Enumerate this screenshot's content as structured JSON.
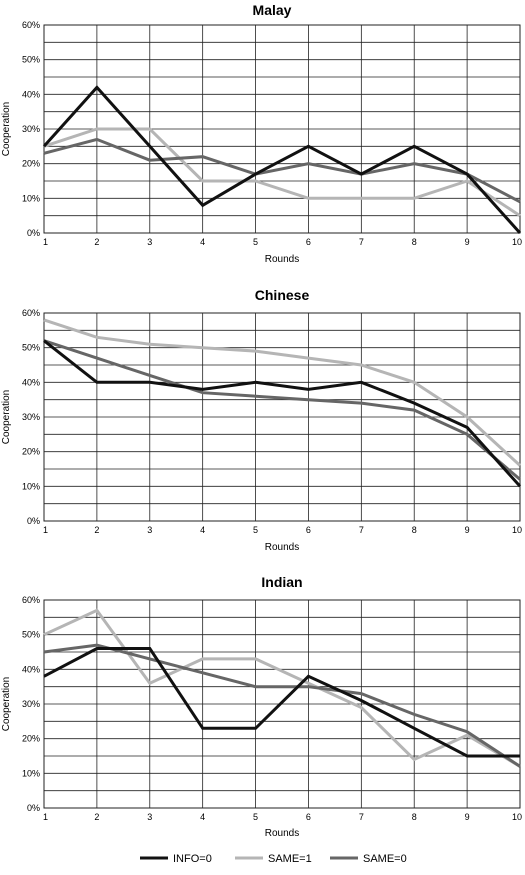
{
  "chart_data": [
    {
      "type": "line",
      "title": "Malay",
      "xlabel": "Rounds",
      "ylabel": "Cooperation",
      "categories": [
        "1",
        "2",
        "3",
        "4",
        "5",
        "6",
        "7",
        "8",
        "9",
        "10"
      ],
      "y_ticks": [
        "0%",
        "10%",
        "20%",
        "30%",
        "40%",
        "50%",
        "60%"
      ],
      "ylim": [
        0,
        60
      ],
      "grid": true,
      "series": [
        {
          "name": "INFO=0",
          "color": "#111111",
          "values": [
            25,
            42,
            25,
            8,
            17,
            25,
            17,
            25,
            17,
            0
          ]
        },
        {
          "name": "SAME=1",
          "color": "#b5b5b5",
          "values": [
            25,
            30,
            30,
            15,
            15,
            10,
            10,
            10,
            15,
            5
          ]
        },
        {
          "name": "SAME=0",
          "color": "#666666",
          "values": [
            23,
            27,
            21,
            22,
            17,
            20,
            17,
            20,
            17,
            9
          ]
        }
      ]
    },
    {
      "type": "line",
      "title": "Chinese",
      "xlabel": "Rounds",
      "ylabel": "Cooperation",
      "categories": [
        "1",
        "2",
        "3",
        "4",
        "5",
        "6",
        "7",
        "8",
        "9",
        "10"
      ],
      "y_ticks": [
        "0%",
        "10%",
        "20%",
        "30%",
        "40%",
        "50%",
        "60%"
      ],
      "ylim": [
        0,
        60
      ],
      "grid": true,
      "series": [
        {
          "name": "INFO=0",
          "color": "#111111",
          "values": [
            52,
            40,
            40,
            38,
            40,
            38,
            40,
            34,
            27,
            10
          ]
        },
        {
          "name": "SAME=1",
          "color": "#b5b5b5",
          "values": [
            58,
            53,
            51,
            50,
            49,
            47,
            45,
            40,
            30,
            16
          ]
        },
        {
          "name": "SAME=0",
          "color": "#666666",
          "values": [
            52,
            47,
            42,
            37,
            36,
            35,
            34,
            32,
            25,
            12
          ]
        }
      ]
    },
    {
      "type": "line",
      "title": "Indian",
      "xlabel": "Rounds",
      "ylabel": "Cooperation",
      "categories": [
        "1",
        "2",
        "3",
        "4",
        "5",
        "6",
        "7",
        "8",
        "9",
        "10"
      ],
      "y_ticks": [
        "0%",
        "10%",
        "20%",
        "30%",
        "40%",
        "50%",
        "60%"
      ],
      "ylim": [
        0,
        60
      ],
      "grid": true,
      "series": [
        {
          "name": "INFO=0",
          "color": "#111111",
          "values": [
            38,
            46,
            46,
            23,
            23,
            38,
            31,
            23,
            15,
            15
          ]
        },
        {
          "name": "SAME=1",
          "color": "#b5b5b5",
          "values": [
            50,
            57,
            36,
            43,
            43,
            36,
            29,
            14,
            21,
            12
          ]
        },
        {
          "name": "SAME=0",
          "color": "#666666",
          "values": [
            45,
            47,
            43,
            39,
            35,
            35,
            33,
            27,
            22,
            12
          ]
        }
      ]
    }
  ],
  "legend": {
    "placement": "bottom-center",
    "entries": [
      {
        "label": "INFO=0",
        "color": "#111111"
      },
      {
        "label": "SAME=1",
        "color": "#b5b5b5"
      },
      {
        "label": "SAME=0",
        "color": "#666666"
      }
    ]
  }
}
